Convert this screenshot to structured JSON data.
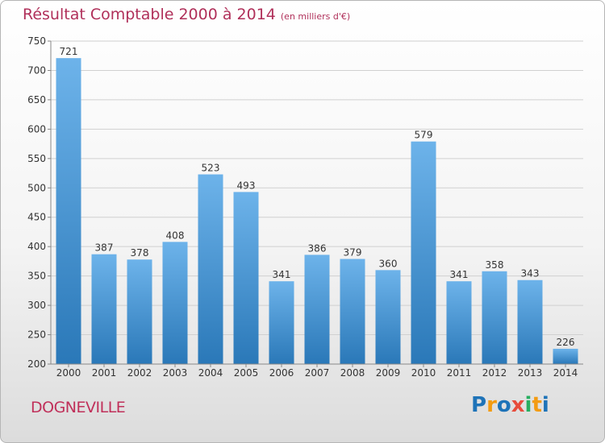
{
  "title": "Résultat Comptable 2000 à 2014",
  "subtitle": "(en milliers d'€)",
  "commune": "DOGNEVILLE",
  "logo": {
    "letters": [
      "P",
      "r",
      "o",
      "x",
      "i",
      "t",
      "i"
    ],
    "colors": [
      "#1e73b8",
      "#f39c12",
      "#1e73b8",
      "#e74c3c",
      "#27ae60",
      "#f39c12",
      "#1e73b8"
    ]
  },
  "colors": {
    "bar_light": "#6db3ea",
    "bar_dark": "#2a78b8",
    "title": "#b0305a",
    "grid": "#d0d0d0"
  },
  "chart_data": {
    "type": "bar",
    "title": "Résultat Comptable 2000 à 2014",
    "subtitle": "(en milliers d'€)",
    "xlabel": "",
    "ylabel": "",
    "categories": [
      "2000",
      "2001",
      "2002",
      "2003",
      "2004",
      "2005",
      "2006",
      "2007",
      "2008",
      "2009",
      "2010",
      "2011",
      "2012",
      "2013",
      "2014"
    ],
    "values": [
      721,
      387,
      378,
      408,
      523,
      493,
      341,
      386,
      379,
      360,
      579,
      341,
      358,
      343,
      226
    ],
    "ylim": [
      200,
      750
    ],
    "yticks": [
      200,
      250,
      300,
      350,
      400,
      450,
      500,
      550,
      600,
      650,
      700,
      750
    ],
    "grid": true
  }
}
